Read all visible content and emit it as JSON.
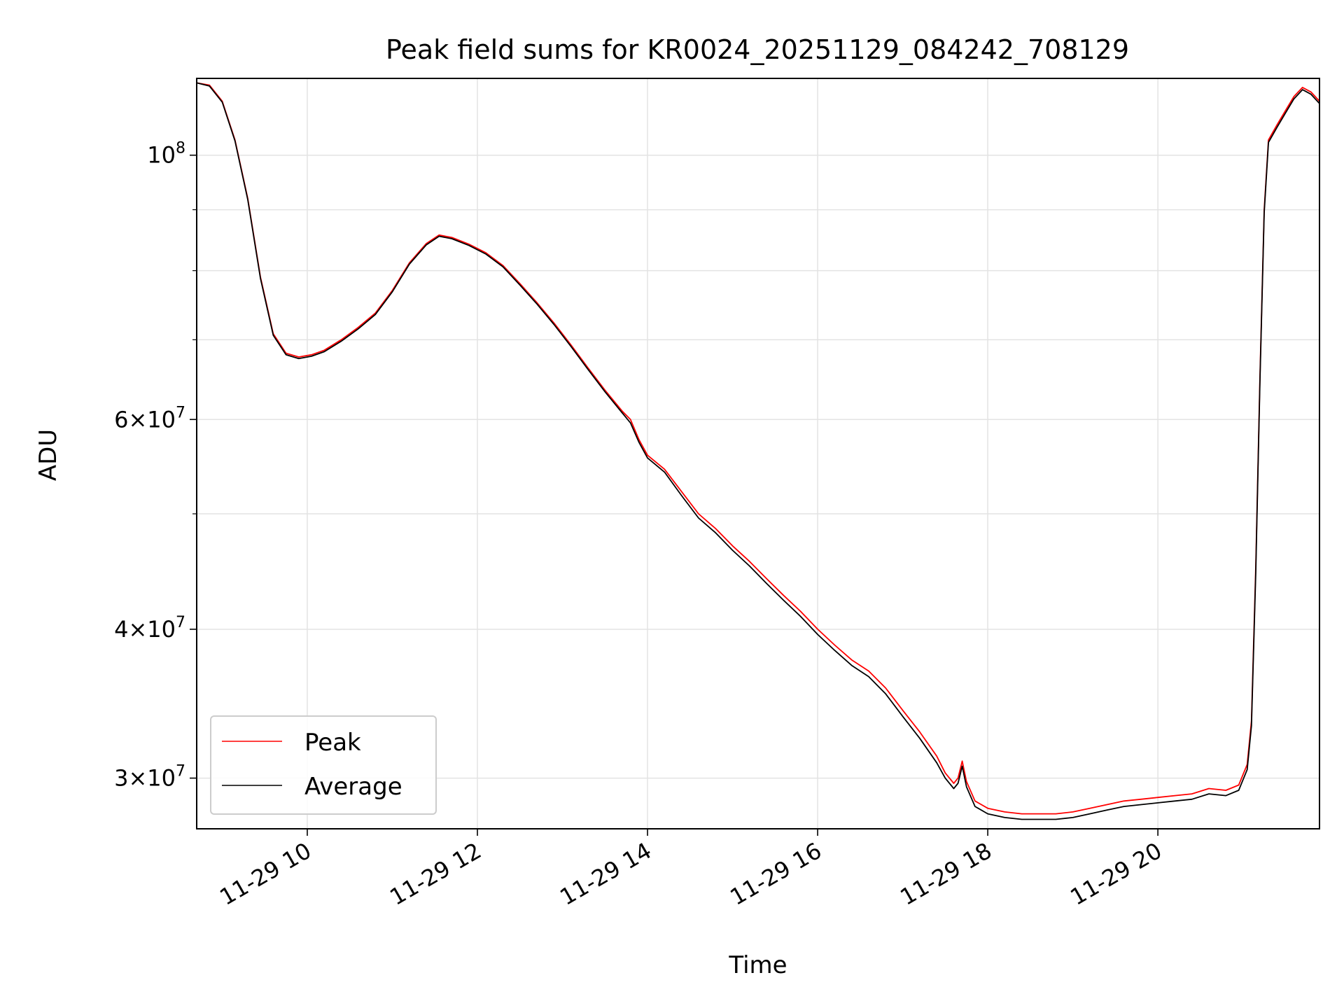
{
  "chart_data": {
    "type": "line",
    "title": "Peak field sums for KR0024_20251129_084242_708129",
    "xlabel": "Time",
    "ylabel": "ADU",
    "y_scale": "log",
    "xlim": [
      8.7,
      21.9
    ],
    "ylim": [
      27200000,
      116000000
    ],
    "grid": true,
    "legend_position": "lower-left",
    "x_ticks": [
      {
        "value": 10,
        "label": "11-29 10"
      },
      {
        "value": 12,
        "label": "11-29 12"
      },
      {
        "value": 14,
        "label": "11-29 14"
      },
      {
        "value": 16,
        "label": "11-29 16"
      },
      {
        "value": 18,
        "label": "11-29 18"
      },
      {
        "value": 20,
        "label": "11-29 20"
      }
    ],
    "y_major_ticks": [
      {
        "value": 100000000,
        "base": "10",
        "exp": "8"
      },
      {
        "value": 60000000,
        "base": "6×10",
        "exp": "7"
      },
      {
        "value": 40000000,
        "base": "4×10",
        "exp": "7"
      },
      {
        "value": 30000000,
        "base": "3×10",
        "exp": "7"
      }
    ],
    "y_minor_ticks": [
      90000000,
      80000000,
      70000000,
      50000000
    ],
    "series": [
      {
        "name": "Peak",
        "color": "#ff0000",
        "points": [
          [
            8.7,
            115000000
          ],
          [
            8.85,
            114500000
          ],
          [
            9.0,
            111000000
          ],
          [
            9.15,
            103000000
          ],
          [
            9.3,
            92000000
          ],
          [
            9.45,
            79000000
          ],
          [
            9.6,
            70800000
          ],
          [
            9.75,
            68200000
          ],
          [
            9.9,
            67700000
          ],
          [
            10.05,
            68000000
          ],
          [
            10.2,
            68600000
          ],
          [
            10.4,
            70000000
          ],
          [
            10.6,
            71700000
          ],
          [
            10.8,
            73700000
          ],
          [
            11.0,
            77000000
          ],
          [
            11.2,
            81200000
          ],
          [
            11.4,
            84300000
          ],
          [
            11.55,
            85700000
          ],
          [
            11.7,
            85300000
          ],
          [
            11.9,
            84200000
          ],
          [
            12.1,
            82800000
          ],
          [
            12.3,
            80800000
          ],
          [
            12.5,
            78000000
          ],
          [
            12.7,
            75200000
          ],
          [
            12.9,
            72300000
          ],
          [
            13.1,
            69300000
          ],
          [
            13.3,
            66300000
          ],
          [
            13.5,
            63500000
          ],
          [
            13.7,
            61000000
          ],
          [
            13.8,
            60000000
          ],
          [
            13.9,
            57700000
          ],
          [
            14.0,
            56000000
          ],
          [
            14.2,
            54500000
          ],
          [
            14.4,
            52200000
          ],
          [
            14.6,
            50000000
          ],
          [
            14.8,
            48600000
          ],
          [
            15.0,
            47000000
          ],
          [
            15.2,
            45600000
          ],
          [
            15.4,
            44100000
          ],
          [
            15.6,
            42700000
          ],
          [
            15.8,
            41400000
          ],
          [
            16.0,
            40000000
          ],
          [
            16.2,
            38800000
          ],
          [
            16.4,
            37700000
          ],
          [
            16.6,
            36900000
          ],
          [
            16.8,
            35700000
          ],
          [
            17.0,
            34200000
          ],
          [
            17.2,
            32800000
          ],
          [
            17.4,
            31300000
          ],
          [
            17.5,
            30300000
          ],
          [
            17.6,
            29700000
          ],
          [
            17.65,
            30000000
          ],
          [
            17.7,
            31000000
          ],
          [
            17.75,
            29800000
          ],
          [
            17.85,
            28700000
          ],
          [
            18.0,
            28300000
          ],
          [
            18.2,
            28100000
          ],
          [
            18.4,
            28000000
          ],
          [
            18.6,
            28000000
          ],
          [
            18.8,
            28000000
          ],
          [
            19.0,
            28100000
          ],
          [
            19.2,
            28300000
          ],
          [
            19.4,
            28500000
          ],
          [
            19.6,
            28700000
          ],
          [
            19.8,
            28800000
          ],
          [
            20.0,
            28900000
          ],
          [
            20.2,
            29000000
          ],
          [
            20.4,
            29100000
          ],
          [
            20.6,
            29400000
          ],
          [
            20.8,
            29300000
          ],
          [
            20.95,
            29600000
          ],
          [
            21.05,
            30800000
          ],
          [
            21.1,
            33500000
          ],
          [
            21.15,
            45000000
          ],
          [
            21.2,
            65000000
          ],
          [
            21.25,
            90000000
          ],
          [
            21.3,
            103000000
          ],
          [
            21.4,
            106000000
          ],
          [
            21.5,
            109000000
          ],
          [
            21.6,
            112000000
          ],
          [
            21.7,
            114000000
          ],
          [
            21.8,
            113000000
          ],
          [
            21.9,
            111000000
          ]
        ]
      },
      {
        "name": "Average",
        "color": "#000000",
        "points": [
          [
            8.7,
            115000000
          ],
          [
            8.85,
            114300000
          ],
          [
            9.0,
            110800000
          ],
          [
            9.15,
            102800000
          ],
          [
            9.3,
            91800000
          ],
          [
            9.45,
            78800000
          ],
          [
            9.6,
            70600000
          ],
          [
            9.75,
            68000000
          ],
          [
            9.9,
            67500000
          ],
          [
            10.05,
            67800000
          ],
          [
            10.2,
            68400000
          ],
          [
            10.4,
            69800000
          ],
          [
            10.6,
            71500000
          ],
          [
            10.8,
            73500000
          ],
          [
            11.0,
            76800000
          ],
          [
            11.2,
            81000000
          ],
          [
            11.4,
            84100000
          ],
          [
            11.55,
            85500000
          ],
          [
            11.7,
            85100000
          ],
          [
            11.9,
            84000000
          ],
          [
            12.1,
            82600000
          ],
          [
            12.3,
            80600000
          ],
          [
            12.5,
            77800000
          ],
          [
            12.7,
            75000000
          ],
          [
            12.9,
            72100000
          ],
          [
            13.1,
            69100000
          ],
          [
            13.3,
            66100000
          ],
          [
            13.5,
            63300000
          ],
          [
            13.7,
            60800000
          ],
          [
            13.8,
            59600000
          ],
          [
            13.9,
            57400000
          ],
          [
            14.0,
            55700000
          ],
          [
            14.2,
            54200000
          ],
          [
            14.4,
            51800000
          ],
          [
            14.6,
            49600000
          ],
          [
            14.8,
            48200000
          ],
          [
            15.0,
            46600000
          ],
          [
            15.2,
            45200000
          ],
          [
            15.4,
            43700000
          ],
          [
            15.6,
            42300000
          ],
          [
            15.8,
            41000000
          ],
          [
            16.0,
            39600000
          ],
          [
            16.2,
            38400000
          ],
          [
            16.4,
            37300000
          ],
          [
            16.6,
            36500000
          ],
          [
            16.8,
            35300000
          ],
          [
            17.0,
            33800000
          ],
          [
            17.2,
            32400000
          ],
          [
            17.4,
            30900000
          ],
          [
            17.5,
            30000000
          ],
          [
            17.6,
            29400000
          ],
          [
            17.65,
            29700000
          ],
          [
            17.7,
            30700000
          ],
          [
            17.75,
            29500000
          ],
          [
            17.85,
            28400000
          ],
          [
            18.0,
            28000000
          ],
          [
            18.2,
            27800000
          ],
          [
            18.4,
            27700000
          ],
          [
            18.6,
            27700000
          ],
          [
            18.8,
            27700000
          ],
          [
            19.0,
            27800000
          ],
          [
            19.2,
            28000000
          ],
          [
            19.4,
            28200000
          ],
          [
            19.6,
            28400000
          ],
          [
            19.8,
            28500000
          ],
          [
            20.0,
            28600000
          ],
          [
            20.2,
            28700000
          ],
          [
            20.4,
            28800000
          ],
          [
            20.6,
            29100000
          ],
          [
            20.8,
            29000000
          ],
          [
            20.95,
            29300000
          ],
          [
            21.05,
            30500000
          ],
          [
            21.1,
            33200000
          ],
          [
            21.15,
            44500000
          ],
          [
            21.2,
            64500000
          ],
          [
            21.25,
            89500000
          ],
          [
            21.3,
            102500000
          ],
          [
            21.4,
            105500000
          ],
          [
            21.5,
            108500000
          ],
          [
            21.6,
            111500000
          ],
          [
            21.7,
            113500000
          ],
          [
            21.8,
            112500000
          ],
          [
            21.9,
            110500000
          ]
        ]
      }
    ]
  }
}
